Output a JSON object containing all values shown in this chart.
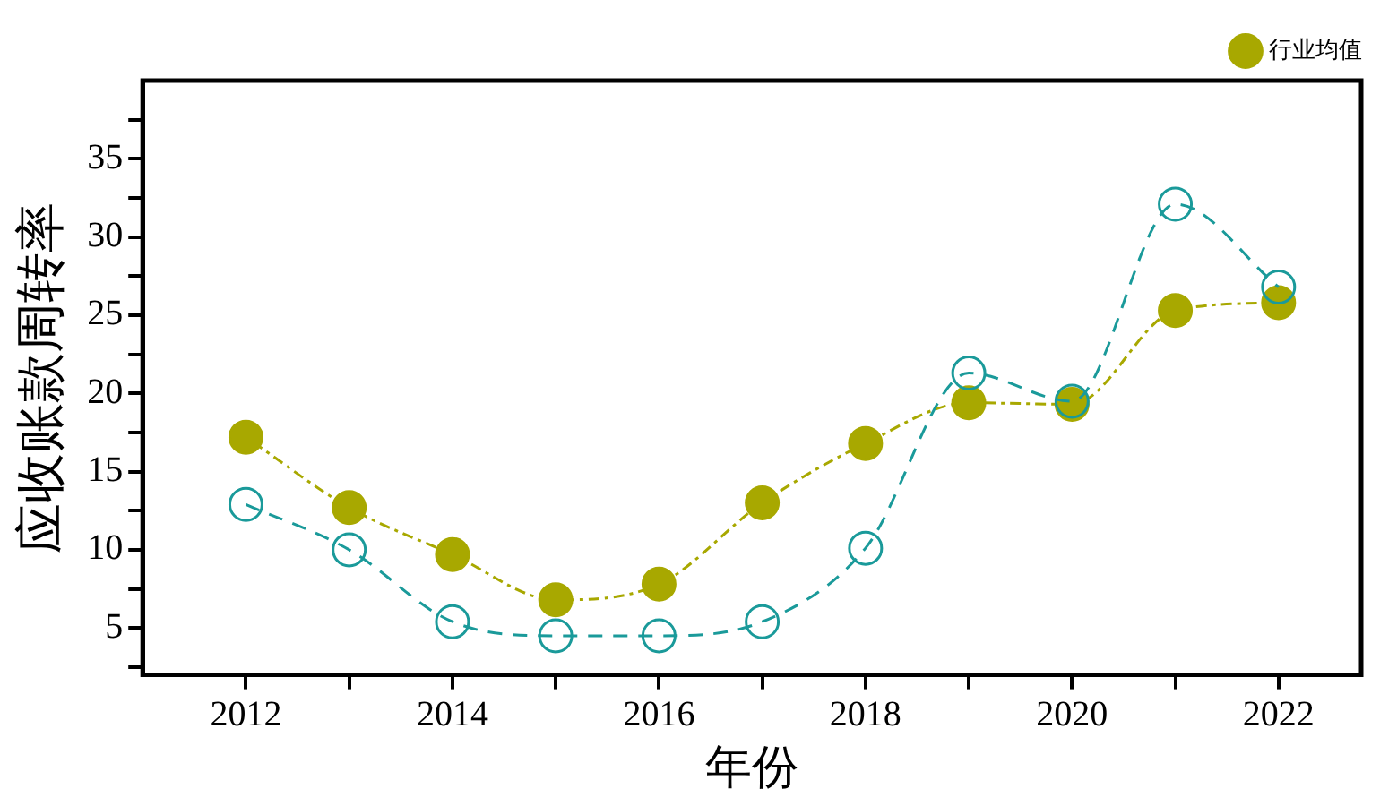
{
  "chart_data": {
    "type": "line",
    "xlabel": "年份",
    "ylabel": "应收账款周转率",
    "x": [
      2012,
      2013,
      2014,
      2015,
      2016,
      2017,
      2018,
      2019,
      2020,
      2021,
      2022
    ],
    "series": [
      {
        "color": "#1a9a9a",
        "marker": "circle",
        "line_style": "dashed",
        "values": [
          12.9,
          10.0,
          5.4,
          4.5,
          4.5,
          5.4,
          10.1,
          21.3,
          19.5,
          32.1,
          26.8
        ]
      },
      {
        "name": "行业均值",
        "color": "#a8a800",
        "marker": "circle",
        "line_style": "dotted",
        "values": [
          17.2,
          12.7,
          9.7,
          6.8,
          7.8,
          13.0,
          16.8,
          19.4,
          19.3,
          25.3,
          25.8
        ]
      }
    ],
    "xlim": [
      2011,
      2022.8
    ],
    "xticks": [
      2012,
      {
        "value": 2013,
        "label": null
      },
      2014,
      {
        "value": 2015,
        "label": null
      },
      2016,
      {
        "value": 2017,
        "label": null
      },
      2018,
      {
        "value": 2019,
        "label": null
      },
      2020,
      {
        "value": 2021,
        "label": null
      },
      2022
    ],
    "ylim": [
      2,
      40
    ],
    "yticks": [
      {
        "value": 2.5,
        "label": null
      },
      5,
      {
        "value": 7.5,
        "label": null
      },
      10,
      {
        "value": 12.5,
        "label": null
      },
      15,
      {
        "value": 17.5,
        "label": null
      },
      20,
      {
        "value": 22.5,
        "label": null
      },
      25,
      {
        "value": 27.5,
        "label": null
      },
      30,
      {
        "value": 32.5,
        "label": null
      },
      35,
      {
        "value": 37.5,
        "label": null
      }
    ],
    "grid": false,
    "legend": "top right"
  }
}
